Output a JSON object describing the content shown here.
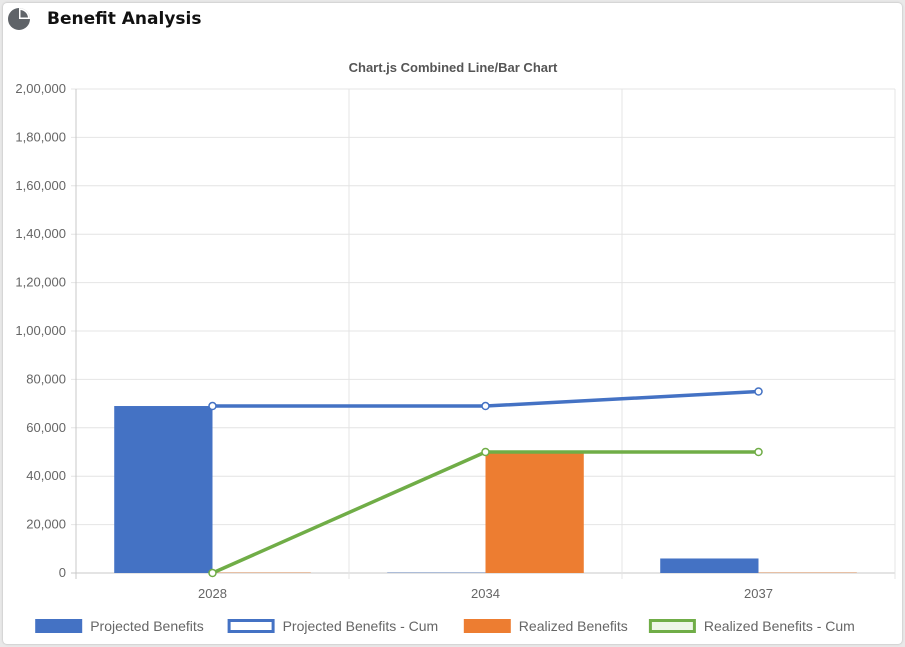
{
  "panel": {
    "title": "Benefit Analysis",
    "icon": "pie-chart-icon"
  },
  "chart_data": {
    "type": "bar",
    "title": "Chart.js Combined Line/Bar Chart",
    "categories": [
      "2028",
      "2034",
      "2037"
    ],
    "ylim": [
      0,
      200000
    ],
    "yticks": [
      0,
      20000,
      40000,
      60000,
      80000,
      100000,
      120000,
      140000,
      160000,
      180000,
      200000
    ],
    "ytick_labels": [
      "0",
      "20,000",
      "40,000",
      "60,000",
      "80,000",
      "1,00,000",
      "1,20,000",
      "1,40,000",
      "1,60,000",
      "1,80,000",
      "2,00,000"
    ],
    "grid": true,
    "legend_position": "bottom",
    "series": [
      {
        "name": "Projected Benefits",
        "type": "bar",
        "values": [
          69000,
          0,
          6000
        ],
        "color": "#4472c4"
      },
      {
        "name": "Projected Benefits - Cum",
        "type": "line",
        "values": [
          69000,
          69000,
          75000
        ],
        "color": "#4472c4"
      },
      {
        "name": "Realized Benefits",
        "type": "bar",
        "values": [
          0,
          50000,
          0
        ],
        "color": "#ed7d31"
      },
      {
        "name": "Realized Benefits - Cum",
        "type": "line",
        "values": [
          0,
          50000,
          50000
        ],
        "color": "#70ad47"
      }
    ]
  }
}
